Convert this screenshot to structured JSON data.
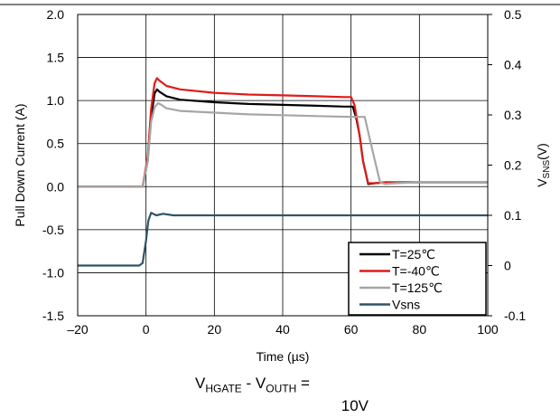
{
  "chart_data": {
    "type": "line",
    "xlabel": "Time (µs)",
    "ylabel_left": "Pull Down Current (A)",
    "ylabel_right": {
      "main": "V",
      "sub": "SNS",
      "tail": "(V)"
    },
    "xlim": [
      -20,
      100
    ],
    "ylim_left": [
      -1.5,
      2.0
    ],
    "ylim_right": [
      -0.1,
      0.5
    ],
    "x_ticks": [
      "–20",
      "0",
      "20",
      "40",
      "60",
      "80",
      "100"
    ],
    "x_tick_values": [
      -20,
      0,
      20,
      40,
      60,
      80,
      100
    ],
    "y_left_ticks": [
      "2.0",
      "1.5",
      "1.0",
      "0.5",
      "0.0",
      "-0.5",
      "-1.0",
      "-1.5"
    ],
    "y_left_tick_values": [
      2.0,
      1.5,
      1.0,
      0.5,
      0.0,
      -0.5,
      -1.0,
      -1.5
    ],
    "y_right_ticks": [
      "0.5",
      "0.4",
      "0.3",
      "0.2",
      "0.1",
      "0",
      "-0.1"
    ],
    "y_right_tick_values": [
      0.5,
      0.4,
      0.3,
      0.2,
      0.1,
      0.0,
      -0.1
    ],
    "grid": true,
    "legend_position": "bottom-right",
    "series": [
      {
        "name": "T=25℃",
        "color": "#000000",
        "axis": "left",
        "x": [
          -20,
          -1,
          0.5,
          1.5,
          2.5,
          3.2,
          4,
          6,
          10,
          20,
          30,
          40,
          50,
          58,
          60.5,
          61.5,
          62.5,
          63.5,
          65,
          67,
          70,
          80,
          100
        ],
        "y": [
          0.0,
          0.0,
          0.3,
          0.8,
          1.08,
          1.13,
          1.1,
          1.05,
          1.01,
          0.98,
          0.96,
          0.95,
          0.94,
          0.93,
          0.93,
          0.8,
          0.6,
          0.3,
          0.03,
          0.04,
          0.05,
          0.05,
          0.05
        ]
      },
      {
        "name": "T=-40℃",
        "color": "#e11b1b",
        "axis": "left",
        "x": [
          -20,
          -1,
          0.5,
          1.5,
          2.5,
          3.2,
          4,
          6,
          10,
          20,
          30,
          40,
          50,
          58,
          60,
          61,
          62.5,
          63.5,
          65,
          67,
          70,
          80,
          100
        ],
        "y": [
          0.0,
          0.0,
          0.35,
          0.9,
          1.2,
          1.26,
          1.23,
          1.17,
          1.13,
          1.09,
          1.07,
          1.06,
          1.05,
          1.04,
          1.04,
          0.95,
          0.6,
          0.3,
          0.04,
          0.04,
          0.05,
          0.05,
          0.05
        ]
      },
      {
        "name": "T=125℃",
        "color": "#a6a6a6",
        "axis": "left",
        "x": [
          -20,
          -1,
          0.5,
          1.5,
          2.5,
          3.5,
          4.5,
          6,
          10,
          20,
          30,
          40,
          50,
          60,
          64,
          65.5,
          67,
          68.5,
          70,
          73,
          80,
          100
        ],
        "y": [
          0.0,
          0.0,
          0.3,
          0.75,
          0.92,
          0.97,
          0.95,
          0.91,
          0.88,
          0.86,
          0.84,
          0.83,
          0.82,
          0.81,
          0.81,
          0.55,
          0.3,
          0.05,
          0.03,
          0.04,
          0.05,
          0.05
        ]
      },
      {
        "name": "Vsns",
        "color": "#2e5566",
        "axis": "right",
        "x": [
          -20,
          -2,
          -1,
          0,
          0.7,
          1.5,
          3,
          5,
          8,
          12,
          20,
          40,
          60,
          80,
          100
        ],
        "y": [
          0.0,
          0.0,
          0.005,
          0.05,
          0.09,
          0.105,
          0.1,
          0.103,
          0.1,
          0.1,
          0.1,
          0.1,
          0.1,
          0.1,
          0.1
        ]
      }
    ]
  },
  "condition_text": {
    "line1_v1": "V",
    "line1_s1": "HGATE",
    "line1_mid": " - V",
    "line1_s2": "OUTH",
    "line1_tail": " =",
    "line2": "10V"
  }
}
